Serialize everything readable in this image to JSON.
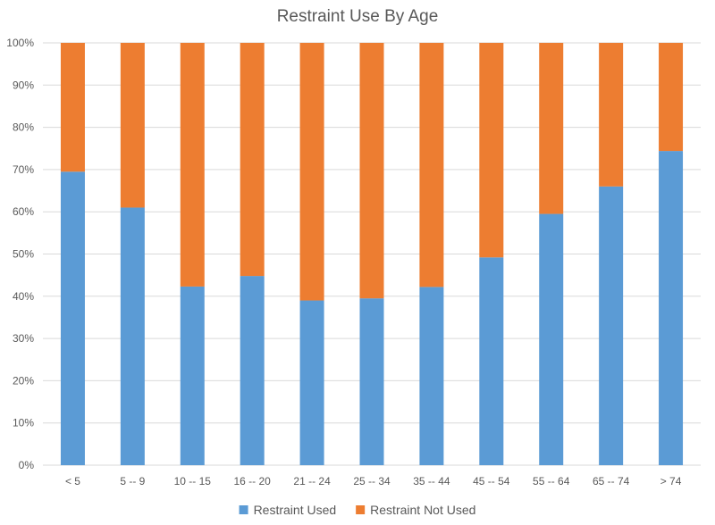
{
  "chart_data": {
    "type": "bar",
    "stacked": true,
    "percent_stacked": true,
    "title": "Restraint Use By Age",
    "xlabel": "",
    "ylabel": "",
    "categories": [
      "< 5",
      "5 -- 9",
      "10 -- 15",
      "16 -- 20",
      "21 -- 24",
      "25 -- 34",
      "35 -- 44",
      "45 -- 54",
      "55 -- 64",
      "65 -- 74",
      "> 74"
    ],
    "series": [
      {
        "name": "Restraint Used",
        "color": "#5B9BD5",
        "values": [
          69.5,
          61,
          42.3,
          44.8,
          39,
          39.5,
          42.2,
          49.2,
          59.5,
          66,
          74.4
        ]
      },
      {
        "name": "Restraint Not Used",
        "color": "#ED7D31",
        "values": [
          30.5,
          39,
          57.7,
          55.2,
          61,
          60.5,
          57.8,
          50.8,
          40.5,
          34,
          25.6
        ]
      }
    ],
    "ylim": [
      0,
      100
    ],
    "yticks": [
      "0%",
      "10%",
      "20%",
      "30%",
      "40%",
      "50%",
      "60%",
      "70%",
      "80%",
      "90%",
      "100%"
    ],
    "grid": true,
    "gridline_color": "#D9D9D9",
    "legend_position": "bottom"
  }
}
